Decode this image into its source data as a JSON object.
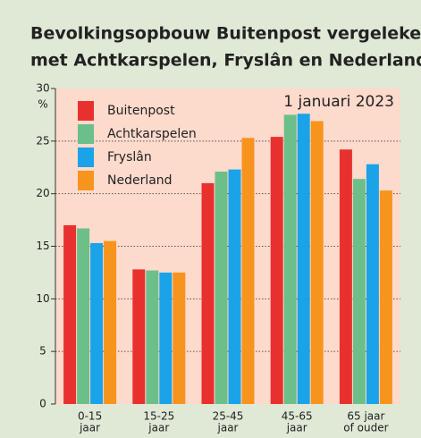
{
  "chart_data": {
    "type": "bar",
    "title": [
      "Bevolkingsopbouw Buitenpost vergeleken",
      "met Achtkarspelen, Fryslân en Nederland"
    ],
    "annotation": "1 januari 2023",
    "y_unit": "%",
    "categories": [
      [
        "0-15",
        "jaar"
      ],
      [
        "15-25",
        "jaar"
      ],
      [
        "25-45",
        "jaar"
      ],
      [
        "45-65",
        "jaar"
      ],
      [
        "65 jaar",
        "of ouder"
      ]
    ],
    "series": [
      {
        "name": "Buitenpost",
        "color": "#e8312f",
        "values": [
          17.0,
          12.8,
          21.0,
          25.4,
          24.2
        ]
      },
      {
        "name": "Achtkarspelen",
        "color": "#6dbf8a",
        "values": [
          16.7,
          12.7,
          22.1,
          27.5,
          21.4
        ]
      },
      {
        "name": "Fryslân",
        "color": "#1aa3e8",
        "values": [
          15.3,
          12.5,
          22.3,
          27.6,
          22.8
        ]
      },
      {
        "name": "Nederland",
        "color": "#f7941d",
        "values": [
          15.5,
          12.5,
          25.3,
          26.9,
          20.3
        ]
      }
    ],
    "ylim": [
      0,
      30
    ],
    "yticks": [
      0,
      5,
      10,
      15,
      20,
      25,
      30
    ],
    "grid": true
  }
}
